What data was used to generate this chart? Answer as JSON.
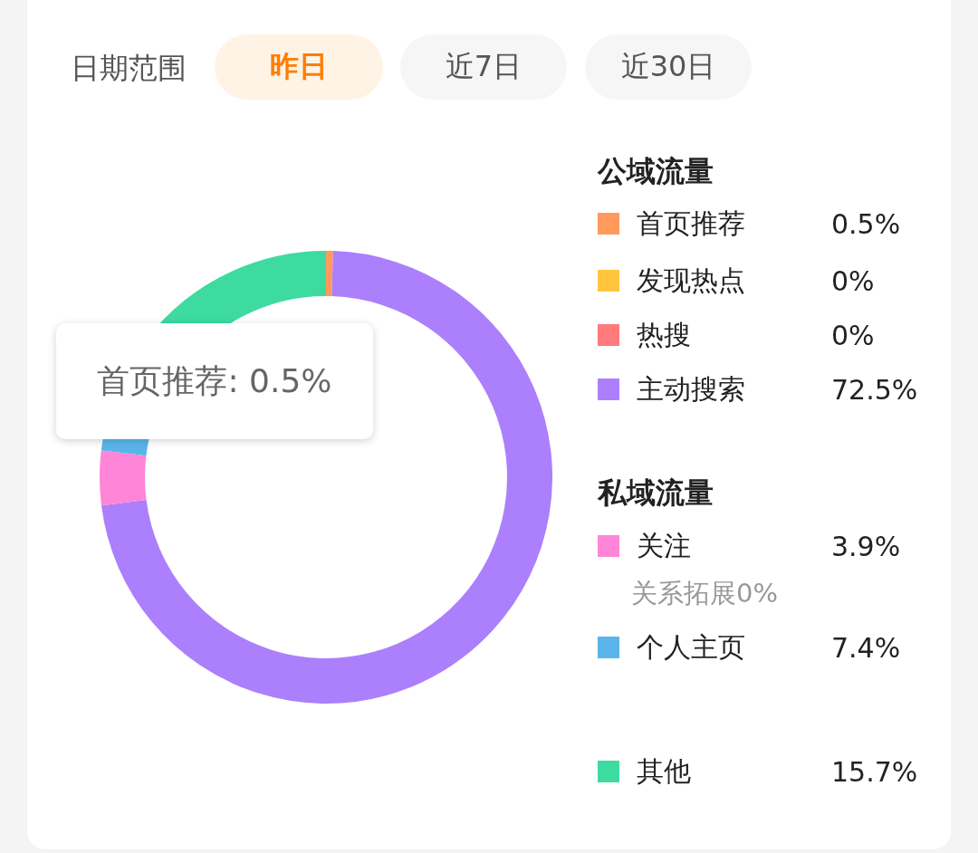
{
  "chart_data": {
    "type": "donut",
    "categories": [
      "首页推荐",
      "发现热点",
      "热搜",
      "主动搜索",
      "关注",
      "个人主页",
      "其他"
    ],
    "values": [
      0.5,
      0,
      0,
      72.5,
      3.9,
      7.4,
      15.7
    ],
    "colors": [
      "#ff9a5c",
      "#ffc53d",
      "#ff7a7a",
      "#ac7ffc",
      "#ff85d8",
      "#5ab4ea",
      "#3ddba0"
    ],
    "value_labels": [
      "0.5%",
      "0%",
      "0%",
      "72.5%",
      "3.9%",
      "7.4%",
      "15.7%"
    ],
    "legend": "right",
    "annotations": [
      "日期范围",
      "昨日",
      "近7日",
      "近30日",
      "公域流量",
      "私域流量",
      "关系拓展0%",
      "首页推荐: 0.5%"
    ]
  }
}
